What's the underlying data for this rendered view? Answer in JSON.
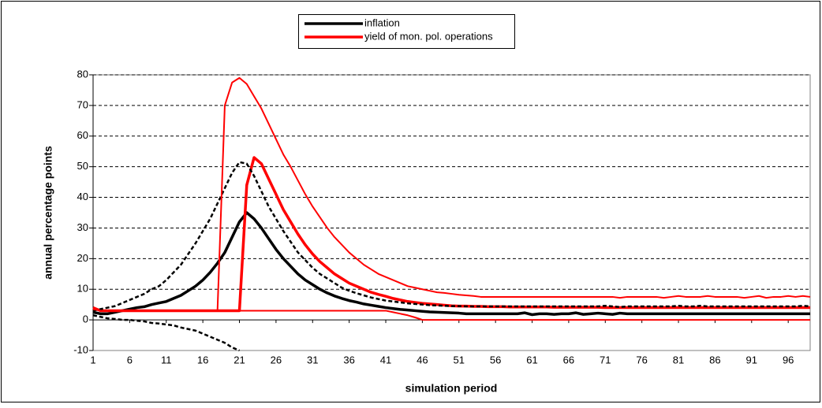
{
  "chart_data": {
    "type": "line",
    "x_title": "simulation period",
    "y_title": "annual percentage points",
    "x": [
      1,
      2,
      3,
      4,
      5,
      6,
      7,
      8,
      9,
      10,
      11,
      12,
      13,
      14,
      15,
      16,
      17,
      18,
      19,
      20,
      21,
      22,
      23,
      24,
      25,
      26,
      27,
      28,
      29,
      30,
      31,
      32,
      33,
      34,
      35,
      36,
      37,
      38,
      39,
      40,
      41,
      42,
      43,
      44,
      45,
      46,
      47,
      48,
      49,
      50,
      51,
      52,
      53,
      54,
      55,
      56,
      57,
      58,
      59,
      60,
      61,
      62,
      63,
      64,
      65,
      66,
      67,
      68,
      69,
      70,
      71,
      72,
      73,
      74,
      75,
      76,
      77,
      78,
      79,
      80,
      81,
      82,
      83,
      84,
      85,
      86,
      87,
      88,
      89,
      90,
      91,
      92,
      93,
      94,
      95,
      96,
      97,
      98,
      99
    ],
    "xlim": [
      1,
      99
    ],
    "xticks": [
      1,
      6,
      11,
      16,
      21,
      26,
      31,
      36,
      41,
      46,
      51,
      56,
      61,
      66,
      71,
      76,
      81,
      86,
      91,
      96
    ],
    "ylim": [
      -10,
      80
    ],
    "yticks": [
      -10,
      0,
      10,
      20,
      30,
      40,
      50,
      60,
      70,
      80
    ],
    "grid": true,
    "legend": "top",
    "series": [
      {
        "name": "inflation",
        "color": "#000000",
        "line_width": 3.5,
        "dashed": false,
        "values": [
          2.5,
          2,
          2,
          2.5,
          3,
          3.5,
          4,
          4.3,
          5,
          5.5,
          6,
          7,
          8,
          9.5,
          11,
          13,
          15.5,
          18.5,
          22,
          27,
          32,
          35,
          33,
          30,
          26.5,
          23,
          20,
          17.5,
          15,
          13,
          11.5,
          10,
          8.8,
          7.8,
          7,
          6.3,
          5.8,
          5.2,
          4.8,
          4.4,
          4,
          3.7,
          3.4,
          3.2,
          3,
          2.8,
          2.6,
          2.5,
          2.4,
          2.3,
          2.2,
          2,
          2,
          2,
          2,
          2,
          2,
          2,
          2,
          2.3,
          1.7,
          2,
          2,
          1.8,
          2,
          2,
          2.3,
          1.8,
          2,
          2.2,
          2,
          1.8,
          2.2,
          2,
          2,
          2,
          2,
          2,
          2,
          2,
          2,
          2,
          2,
          2,
          2,
          2,
          2,
          2,
          2,
          2,
          2,
          2,
          2,
          2,
          2,
          2,
          2,
          2,
          2
        ]
      },
      {
        "name": "yield of mon. pol. operations",
        "color": "#ff0000",
        "line_width": 3.5,
        "dashed": false,
        "values": [
          4,
          3,
          3,
          3,
          3,
          3,
          3,
          3,
          3,
          3,
          3,
          3,
          3,
          3,
          3,
          3,
          3,
          3,
          3,
          3,
          3,
          44,
          53,
          51,
          46,
          41,
          36,
          32,
          28,
          24.5,
          21.5,
          19,
          17,
          15,
          13.5,
          12,
          11,
          10,
          9,
          8.3,
          7.7,
          7,
          6.5,
          6,
          5.7,
          5.4,
          5.2,
          5,
          4.8,
          4.6,
          4.5,
          4.5,
          4.4,
          4.4,
          4.3,
          4.3,
          4.3,
          4.2,
          4.2,
          4.2,
          4.2,
          4.2,
          4.2,
          4.1,
          4.1,
          4.1,
          4.1,
          4.1,
          4.1,
          4.1,
          4,
          4,
          4,
          4,
          4,
          4,
          4,
          4,
          4,
          4,
          4,
          4,
          4,
          4,
          4,
          4,
          4,
          4,
          4,
          4,
          4,
          4,
          4,
          4,
          4,
          4,
          4,
          4,
          4
        ]
      },
      {
        "color": "#000000",
        "line_width": 2.5,
        "dashed": true,
        "values": [
          3,
          3.5,
          4,
          4.5,
          5.5,
          6.5,
          7.5,
          8.5,
          10,
          11,
          13,
          15.5,
          18,
          21.5,
          25,
          29,
          33,
          38,
          43,
          48,
          51.5,
          51,
          47,
          42,
          37,
          33,
          29,
          25.5,
          22,
          19.5,
          17,
          15,
          13.5,
          12,
          10.5,
          9.5,
          8.7,
          8,
          7.3,
          6.8,
          6.3,
          6,
          5.7,
          5.4,
          5.2,
          5,
          4.8,
          4.7,
          4.6,
          4.5,
          4.5,
          4.4,
          4.4,
          4.4,
          4.4,
          4.4,
          4.4,
          4.4,
          4.4,
          4.4,
          4.4,
          4.4,
          4.4,
          4.4,
          4.4,
          4.4,
          4.4,
          4.4,
          4.4,
          4.4,
          4.6,
          4.4,
          4.2,
          4.4,
          4.4,
          4.4,
          4.4,
          4.4,
          4.4,
          4.4,
          4.6,
          4.4,
          4.4,
          4.6,
          4.4,
          4.4,
          4.4,
          4.4,
          4.4,
          4.4,
          4.4,
          4.4,
          4.4,
          4.4,
          4.4,
          4.4,
          4.4,
          4.6,
          4.4
        ]
      },
      {
        "color": "#000000",
        "line_width": 2.5,
        "dashed": true,
        "values": [
          1.5,
          1,
          0.5,
          0.3,
          0,
          0,
          -0.3,
          -0.5,
          -1,
          -1.2,
          -1.5,
          -1.8,
          -2.5,
          -3,
          -3.5,
          -4.5,
          -5.5,
          -6.5,
          -7.5,
          -9,
          -10,
          null,
          null,
          null,
          null,
          null,
          null,
          null,
          null,
          null,
          null,
          null,
          null,
          null,
          null,
          null,
          null,
          null,
          null,
          null,
          null,
          null,
          null,
          null,
          null,
          null,
          null,
          null,
          null,
          null,
          null,
          null,
          null,
          null,
          null,
          null,
          null,
          null,
          null,
          null,
          null,
          null,
          null,
          null,
          null,
          null,
          null,
          null,
          null,
          null,
          null,
          null,
          null,
          null,
          null,
          null,
          null,
          null,
          null,
          null,
          null,
          null,
          null,
          null,
          null,
          null,
          null,
          null,
          null,
          null,
          null,
          null,
          null,
          null,
          null,
          null,
          null,
          null,
          null
        ]
      },
      {
        "color": "#ff0000",
        "line_width": 2,
        "dashed": false,
        "values": [
          4,
          3,
          3,
          3,
          3,
          3,
          3,
          3,
          3,
          3,
          3,
          3,
          3,
          3,
          3,
          3,
          3,
          3,
          70,
          77.5,
          79,
          77,
          73,
          69,
          64,
          59,
          54,
          50,
          45.5,
          41,
          37,
          33.5,
          30,
          27,
          24.5,
          22,
          20,
          18,
          16.5,
          15,
          14,
          13,
          12,
          11,
          10.5,
          10,
          9.5,
          9,
          8.8,
          8.5,
          8.2,
          8,
          7.8,
          7.5,
          7.5,
          7.5,
          7.5,
          7.5,
          7.5,
          7.5,
          7.5,
          7.5,
          7.5,
          7.5,
          7.5,
          7.5,
          7.5,
          7.5,
          7.5,
          7.5,
          7.5,
          7.5,
          7.2,
          7.5,
          7.5,
          7.5,
          7.5,
          7.5,
          7.2,
          7.5,
          7.8,
          7.5,
          7.5,
          7.5,
          7.8,
          7.5,
          7.5,
          7.5,
          7.5,
          7.2,
          7.5,
          7.8,
          7.2,
          7.5,
          7.5,
          7.8,
          7.5,
          7.8,
          7.5
        ]
      },
      {
        "color": "#ff0000",
        "line_width": 2,
        "dashed": false,
        "values": [
          3.5,
          3,
          3,
          3,
          3,
          3,
          3,
          3,
          3,
          3,
          3,
          3,
          3,
          3,
          3,
          3,
          3,
          3,
          3,
          3,
          3,
          3,
          3,
          3,
          3,
          3,
          3,
          3,
          3,
          3,
          3,
          3,
          3,
          3,
          3,
          3,
          3,
          3,
          3,
          3,
          3,
          2.5,
          2,
          1.5,
          0.8,
          0,
          0,
          0,
          0,
          0,
          0,
          0,
          0,
          0,
          0,
          0,
          0,
          0,
          0,
          0,
          0,
          0,
          0,
          0,
          0,
          0,
          0,
          0,
          0,
          0,
          0,
          0,
          0,
          0,
          0,
          0,
          0,
          0,
          0,
          0,
          0,
          0,
          0,
          0,
          0,
          0,
          0,
          0,
          0,
          0,
          0,
          0,
          0,
          0,
          0,
          0,
          0,
          0,
          0
        ]
      }
    ]
  }
}
